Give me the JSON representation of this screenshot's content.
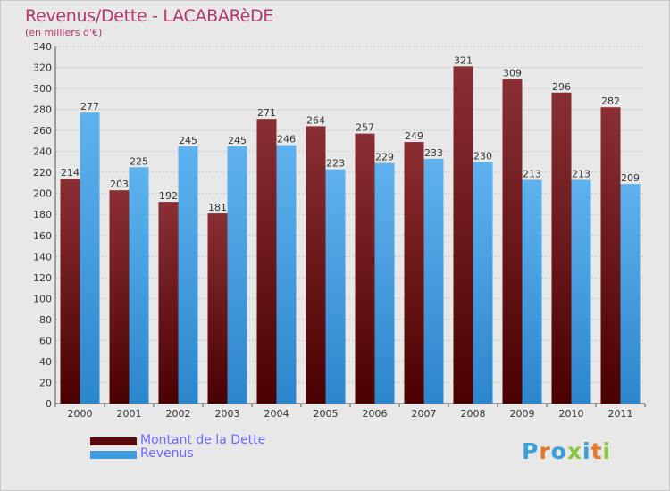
{
  "title": "Revenus/Dette - LACABARèDE",
  "subtitle": "(en milliers d'€)",
  "logo": {
    "text": "Proxiti",
    "letter_colors": [
      "#3aa0d8",
      "#e07a2a",
      "#3aa0d8",
      "#8cc63e",
      "#3aa0d8",
      "#e07a2a",
      "#8cc63e"
    ]
  },
  "chart_data": {
    "type": "bar",
    "categories": [
      "2000",
      "2001",
      "2002",
      "2003",
      "2004",
      "2005",
      "2006",
      "2007",
      "2008",
      "2009",
      "2010",
      "2011"
    ],
    "series": [
      {
        "name": "Montant de la Dette",
        "values": [
          214,
          203,
          192,
          181,
          271,
          264,
          257,
          249,
          321,
          309,
          296,
          282
        ],
        "color_top": "#8a2f34",
        "color_bottom": "#4a0000"
      },
      {
        "name": "Revenus",
        "values": [
          277,
          225,
          245,
          245,
          246,
          223,
          229,
          233,
          230,
          213,
          213,
          209
        ],
        "color_top": "#5fb2ee",
        "color_bottom": "#2c86cc"
      }
    ],
    "ylim": [
      0,
      340
    ],
    "ytick_step": 20,
    "xlabel": "",
    "ylabel": "",
    "grid": true,
    "legend_position": "bottom-left"
  }
}
